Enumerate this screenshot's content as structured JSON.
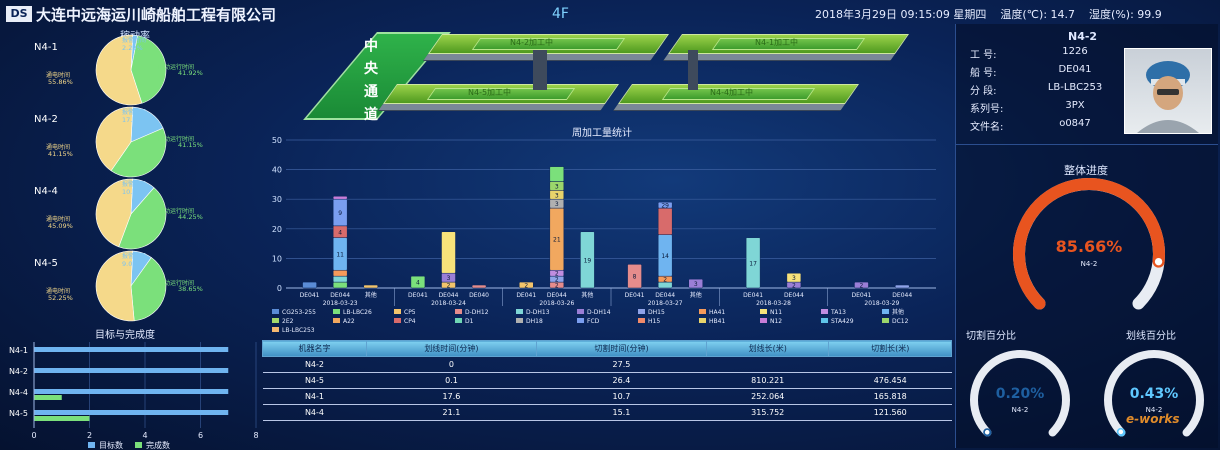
{
  "header": {
    "logo_mark": "DS",
    "company": "大连中远海运川崎船舶工程有限公司",
    "floor": "4F",
    "datetime": "2018年3月29日  09:15:09  星期四",
    "temperature": "温度(℃): 14.7",
    "humidity": "湿度(%): 99.9"
  },
  "utilization": {
    "title": "稼动率",
    "machines": [
      {
        "name": "N4-1",
        "segments": [
          {
            "label": "报警时间",
            "value": "2.23%",
            "pct": 2.23,
            "color": "#7cc4f2"
          },
          {
            "label": "自动运行时间",
            "value": "41.92%",
            "pct": 41.92,
            "color": "#7be07b"
          },
          {
            "label": "通电时间",
            "value": "55.86%",
            "pct": 55.86,
            "color": "#f5d98a"
          }
        ]
      },
      {
        "name": "N4-2",
        "segments": [
          {
            "label": "报警时间",
            "value": "17.70%",
            "pct": 17.7,
            "color": "#7cc4f2"
          },
          {
            "label": "自动运行时间",
            "value": "41.15%",
            "pct": 41.15,
            "color": "#7be07b"
          },
          {
            "label": "通电时间",
            "value": "41.15%",
            "pct": 41.15,
            "color": "#f5d98a"
          }
        ]
      },
      {
        "name": "N4-4",
        "segments": [
          {
            "label": "报警时间",
            "value": "10.65%",
            "pct": 10.65,
            "color": "#7cc4f2"
          },
          {
            "label": "自动运行时间",
            "value": "44.25%",
            "pct": 44.25,
            "color": "#7be07b"
          },
          {
            "label": "通电时间",
            "value": "45.09%",
            "pct": 45.09,
            "color": "#f5d98a"
          }
        ]
      },
      {
        "name": "N4-5",
        "segments": [
          {
            "label": "报警时间",
            "value": "9.09%",
            "pct": 9.09,
            "color": "#7cc4f2"
          },
          {
            "label": "自动运行时间",
            "value": "38.65%",
            "pct": 38.65,
            "color": "#7be07b"
          },
          {
            "label": "通电时间",
            "value": "52.25%",
            "pct": 52.25,
            "color": "#f5d98a"
          }
        ]
      }
    ]
  },
  "plant": {
    "aisle_label": "中 央 通 道",
    "beds": [
      "N4-2加工中",
      "N4-1加工中",
      "N4-5加工中",
      "N4-4加工中"
    ]
  },
  "weekly_chart_title": "周加工量统计",
  "chart_data": {
    "type": "bar",
    "title": "周加工量统计",
    "ylim": [
      0,
      50
    ],
    "yticks": [
      0,
      10,
      20,
      30,
      40,
      50
    ],
    "groups": [
      {
        "date": "2018-03-23",
        "bars": [
          {
            "label": "DE041",
            "total": 2,
            "stack": [
              2
            ]
          },
          {
            "label": "DE044",
            "total": 31,
            "stack": [
              2,
              2,
              2,
              11,
              4,
              9,
              1
            ],
            "labels": [
              "",
              "",
              "",
              "11",
              "4",
              "9",
              ""
            ]
          },
          {
            "label": "其他",
            "total": 1,
            "stack": [
              1
            ]
          }
        ]
      },
      {
        "date": "2018-03-24",
        "bars": [
          {
            "label": "DE041",
            "total": 4,
            "stack": [
              4
            ],
            "labels": [
              "4"
            ]
          },
          {
            "label": "DE044",
            "total": 19,
            "stack": [
              2,
              3,
              14
            ],
            "labels": [
              "2",
              "3",
              ""
            ]
          },
          {
            "label": "DE040",
            "total": 1,
            "stack": [
              1
            ]
          }
        ]
      },
      {
        "date": "2018-03-26",
        "bars": [
          {
            "label": "DE041",
            "total": 2,
            "stack": [
              2
            ],
            "labels": [
              "2"
            ]
          },
          {
            "label": "DE044",
            "total": 41,
            "stack": [
              2,
              2,
              2,
              21,
              3,
              3,
              3,
              5
            ],
            "labels": [
              "2",
              "2",
              "2",
              "21",
              "3",
              "3",
              "3",
              ""
            ]
          },
          {
            "label": "其他",
            "total": 19,
            "stack": [
              19
            ],
            "labels": [
              "19"
            ]
          }
        ]
      },
      {
        "date": "2018-03-27",
        "bars": [
          {
            "label": "DE041",
            "total": 8,
            "stack": [
              8
            ],
            "labels": [
              "8"
            ]
          },
          {
            "label": "DE044",
            "total": 29,
            "stack": [
              2,
              2,
              14,
              9,
              2
            ],
            "labels": [
              "",
              "2",
              "14",
              "",
              "29"
            ]
          },
          {
            "label": "其他",
            "total": 3,
            "stack": [
              3
            ],
            "labels": [
              "3"
            ]
          }
        ]
      },
      {
        "date": "2018-03-28",
        "bars": [
          {
            "label": "DE041",
            "total": 17,
            "stack": [
              17
            ],
            "labels": [
              "17"
            ]
          },
          {
            "label": "DE044",
            "total": 5,
            "stack": [
              2,
              3
            ],
            "labels": [
              "2",
              "3"
            ]
          }
        ]
      },
      {
        "date": "2018-03-29",
        "bars": [
          {
            "label": "DE041",
            "total": 2,
            "stack": [
              2
            ],
            "labels": [
              "2"
            ]
          },
          {
            "label": "DE044",
            "total": 1,
            "stack": [
              1
            ]
          }
        ]
      }
    ],
    "legend": [
      {
        "name": "CG253-255",
        "color": "#5b8cd6"
      },
      {
        "name": "LB-LBC26",
        "color": "#7be07b"
      },
      {
        "name": "CP5",
        "color": "#f3c46b"
      },
      {
        "name": "D-DH12",
        "color": "#e58c8c"
      },
      {
        "name": "D-DH13",
        "color": "#7fd6d6"
      },
      {
        "name": "D-DH14",
        "color": "#9a7ed6"
      },
      {
        "name": "DH15",
        "color": "#8fa3e8"
      },
      {
        "name": "HA41",
        "color": "#f59a5a"
      },
      {
        "name": "N11",
        "color": "#f7e27a"
      },
      {
        "name": "TA13",
        "color": "#c08de0"
      },
      {
        "name": "其他",
        "color": "#6fb4f0"
      },
      {
        "name": "2E2",
        "color": "#a6d86b"
      },
      {
        "name": "A22",
        "color": "#f1a85f"
      },
      {
        "name": "CP4",
        "color": "#d86b6b"
      },
      {
        "name": "D1",
        "color": "#6fd6b4"
      },
      {
        "name": "DH18",
        "color": "#b0b0b0"
      },
      {
        "name": "FCD",
        "color": "#7a9ef0"
      },
      {
        "name": "H15",
        "color": "#f08a6a"
      },
      {
        "name": "HB41",
        "color": "#e8d36b"
      },
      {
        "name": "N12",
        "color": "#c77dd8"
      },
      {
        "name": "STA429",
        "color": "#5fc4e8"
      },
      {
        "name": "DC12",
        "color": "#9bd66b"
      },
      {
        "name": "LB-LBC253",
        "color": "#f5b870"
      }
    ]
  },
  "target": {
    "title": "目标与完成度",
    "machines": [
      {
        "name": "N4-1",
        "target": 7,
        "done": 0
      },
      {
        "name": "N4-2",
        "target": 7,
        "done": 0
      },
      {
        "name": "N4-4",
        "target": 7,
        "done": 1
      },
      {
        "name": "N4-5",
        "target": 7,
        "done": 2
      }
    ],
    "xticks": [
      "0",
      "2",
      "4",
      "6",
      "8"
    ],
    "xmax": 8,
    "legend_target": "目标数",
    "legend_done": "完成数"
  },
  "table": {
    "headers": [
      "机器名字",
      "划线时间(分钟)",
      "切割时间(分钟)",
      "划线长(米)",
      "切割长(米)"
    ],
    "rows": [
      [
        "N4-2",
        "0",
        "27.5",
        "",
        ""
      ],
      [
        "N4-5",
        "0.1",
        "26.4",
        "810.221",
        "476.454"
      ],
      [
        "N4-1",
        "17.6",
        "10.7",
        "252.064",
        "165.818"
      ],
      [
        "N4-4",
        "21.1",
        "15.1",
        "315.752",
        "121.560"
      ]
    ]
  },
  "machine_info": {
    "title": "N4-2",
    "fields": [
      {
        "label": "工    号:",
        "value": "1226"
      },
      {
        "label": "船    号:",
        "value": "DE041"
      },
      {
        "label": "分    段:",
        "value": "LB-LBC253"
      },
      {
        "label": "系列号:",
        "value": "3PX"
      },
      {
        "label": "文件名:",
        "value": "o0847"
      }
    ]
  },
  "progress": {
    "title": "整体进度",
    "value": "85.66%",
    "pct": 85.66,
    "machine": "N4-2"
  },
  "cut_pct": {
    "title": "切割百分比",
    "value": "0.20%",
    "pct": 0.2,
    "machine": "N4-2"
  },
  "line_pct": {
    "title": "划线百分比",
    "value": "0.43%",
    "pct": 0.43,
    "machine": "N4-2"
  },
  "watermark": "e-works"
}
